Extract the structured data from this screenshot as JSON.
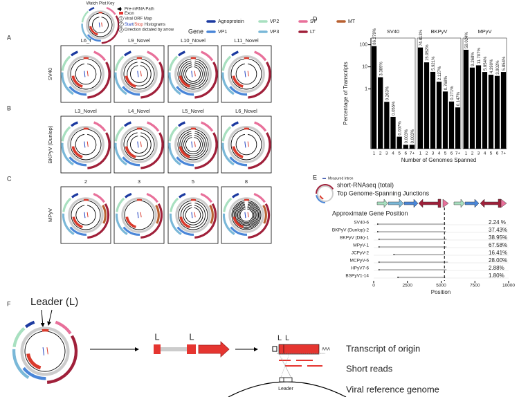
{
  "key": {
    "title": "Watch Plot Key",
    "path": "Pre-mRNA Path",
    "exon": "Exon",
    "orf_num": "1",
    "orf": "Viral ORF Map",
    "hist_num": "2",
    "start": "Start",
    "slash": "/",
    "stop": "Stop",
    "hist": "Histograms",
    "dir_num": "3",
    "dir": "Direction dictated by arrow"
  },
  "gene_legend": {
    "title": "Gene",
    "genes": [
      {
        "name": "Agnoprotein",
        "color": "#1c3aa0"
      },
      {
        "name": "VP1",
        "color": "#4a86d8"
      },
      {
        "name": "VP2",
        "color": "#a8e0c0"
      },
      {
        "name": "VP3",
        "color": "#7ab8d8"
      },
      {
        "name": "ST",
        "color": "#e8709a"
      },
      {
        "name": "LT",
        "color": "#a0203a"
      },
      {
        "name": "MT",
        "color": "#b86030"
      }
    ]
  },
  "panel_letters": [
    "A",
    "B",
    "C",
    "D",
    "E",
    "F"
  ],
  "rows": [
    {
      "label": "SV40",
      "plots": [
        "L6_I",
        "L9_Novel",
        "L10_Novel",
        "L11_Novel"
      ]
    },
    {
      "label": "BKPyV (Dunlop)",
      "plots": [
        "L3_Novel",
        "L4_Novel",
        "L5_Novel",
        "L6_Novel"
      ]
    },
    {
      "label": "MPyV",
      "plots": [
        "2",
        "3",
        "5",
        "8"
      ]
    }
  ],
  "panel_d": {
    "type": "bar",
    "y_label": "Percentage of Transcripts",
    "x_label": "Number of Genomes Spanned",
    "log_scale": true,
    "color": "#000000",
    "ylim": [
      0.002,
      200
    ],
    "yticks": [
      1,
      10,
      100
    ],
    "categories": [
      "1",
      "2",
      "3",
      "4",
      "5",
      "6",
      "7+"
    ],
    "charts": [
      {
        "title": "SV40",
        "values": [
          86.279,
          3.389,
          0.263,
          0.055,
          0.007,
          0.003,
          0.003
        ],
        "value_labels": [
          "86.279%",
          "3.389%",
          "0.263%",
          "0.055%",
          "0.007%",
          "0.003%",
          "0.003%"
        ]
      },
      {
        "title": "BKPyV",
        "values": [
          74.813,
          15.952,
          5.921,
          2.127,
          0.768,
          0.271,
          0.147
        ],
        "value_labels": [
          "74.813%",
          "15.952%",
          "5.921%",
          "2.127%",
          "0.768%",
          "0.271%",
          "0.147%"
        ]
      },
      {
        "title": "MPyV",
        "values": [
          59.024,
          9.268,
          11.707,
          5.854,
          4.39,
          3.902,
          5.854
        ],
        "value_labels": [
          "59.024%",
          "9.268%",
          "11.707%",
          "5.854%",
          "4.390%",
          "3.902%",
          "5.854%"
        ]
      }
    ]
  },
  "panel_e": {
    "type": "range",
    "intron_label": "Measured Intron",
    "title1": "short-RNAseq (total)",
    "title2": "Top Genome-Spanning Junctions",
    "gene_label": "Approximate Gene Position",
    "x_label": "Position",
    "xlim": [
      0,
      10000
    ],
    "xticks": [
      0,
      2500,
      5000,
      7500,
      10000
    ],
    "reference_line": 5243,
    "rows": [
      {
        "name": "SV40-6",
        "label": "2.24 %",
        "start": 300,
        "end": 5300
      },
      {
        "name": "BKPyV (Dunlop)-2",
        "label": "37.43%",
        "start": 300,
        "end": 5350
      },
      {
        "name": "BKPyV (Dik)-1",
        "label": "38.95%",
        "start": 400,
        "end": 5400
      },
      {
        "name": "MPyV-1",
        "label": "67.58%",
        "start": 400,
        "end": 5400
      },
      {
        "name": "JCPyV-2",
        "label": "16.41%",
        "start": 1500,
        "end": 5300
      },
      {
        "name": "MCPyV-6",
        "label": "28.00%",
        "start": 400,
        "end": 5500
      },
      {
        "name": "HPyV7-6",
        "label": "2.88%",
        "start": 400,
        "end": 5400
      },
      {
        "name": "BSPyV1-14",
        "label": "1.80%",
        "start": 1800,
        "end": 5300
      }
    ]
  },
  "panel_f": {
    "leader": "Leader (L)",
    "l1": "L",
    "l2": "L",
    "l3": "L",
    "l4": "L",
    "aaa": "AAA",
    "transcript": "Transcript of origin",
    "reads": "Short reads",
    "genome": "Viral reference genome",
    "leader_small": "Leader"
  }
}
